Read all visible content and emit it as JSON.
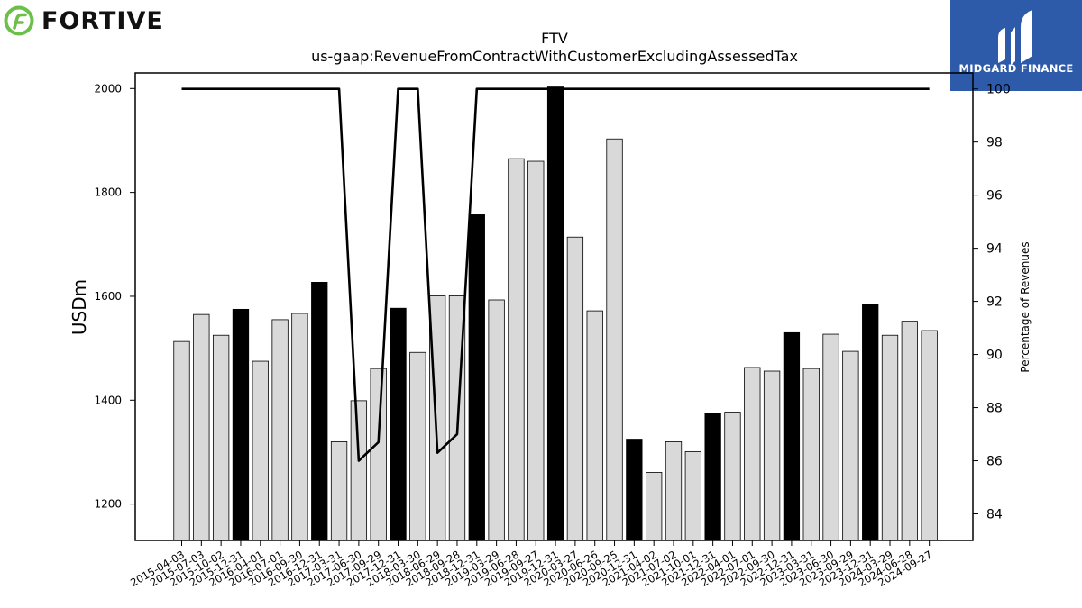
{
  "brand_left": {
    "name": "FORTIVE",
    "color": "#6cc04a"
  },
  "brand_right": {
    "name": "MIDGARD FINANCE",
    "color": "#2d5aa9"
  },
  "chart_data": {
    "type": "bar",
    "title": "FTV",
    "subtitle": "us-gaap:RevenueFromContractWithCustomerExcludingAssessedTax",
    "ylabel": "USDm",
    "y2label": "Percentage of Revenues",
    "ylim": [
      1130,
      2030
    ],
    "y2lim": [
      83,
      100.6
    ],
    "yticks": [
      1200,
      1400,
      1600,
      1800,
      2000
    ],
    "y2ticks": [
      84,
      86,
      88,
      90,
      92,
      94,
      96,
      98,
      100
    ],
    "grid": false,
    "colors": {
      "quarter": "#d9d9d9",
      "year_end": "#000000",
      "line": "#000000"
    },
    "categories": [
      "2015-04-03",
      "2015-07-03",
      "2015-10-02",
      "2015-12-31",
      "2016-04-01",
      "2016-07-01",
      "2016-09-30",
      "2016-12-31",
      "2017-03-31",
      "2017-06-30",
      "2017-09-29",
      "2017-12-31",
      "2018-03-30",
      "2018-06-29",
      "2018-09-28",
      "2018-12-31",
      "2019-03-29",
      "2019-06-28",
      "2019-09-27",
      "2019-12-31",
      "2020-03-27",
      "2020-06-26",
      "2020-09-25",
      "2020-12-31",
      "2021-04-02",
      "2021-07-02",
      "2021-10-01",
      "2021-12-31",
      "2022-04-01",
      "2022-07-01",
      "2022-09-30",
      "2022-12-31",
      "2023-03-31",
      "2023-06-30",
      "2023-09-29",
      "2023-12-31",
      "2024-03-29",
      "2024-06-28",
      "2024-09-27"
    ],
    "series": [
      {
        "values": [
          1513,
          1565,
          1525,
          1575,
          1475,
          1555,
          1567,
          1627,
          1320,
          1399,
          1461,
          1577,
          1492,
          1601,
          1601,
          1757,
          1593,
          1865,
          1860,
          2003,
          1714,
          1572,
          1903,
          1325,
          1261,
          1320,
          1301,
          1375,
          1377,
          1463,
          1456,
          1530,
          1461,
          1527,
          1494,
          1584,
          1525,
          1552,
          1534
        ],
        "year_end": [
          false,
          false,
          false,
          true,
          false,
          false,
          false,
          true,
          false,
          false,
          false,
          true,
          false,
          false,
          false,
          true,
          false,
          false,
          false,
          true,
          false,
          false,
          false,
          true,
          false,
          false,
          false,
          true,
          false,
          false,
          false,
          true,
          false,
          false,
          false,
          true,
          false,
          false,
          false
        ]
      },
      {
        "axis": "right",
        "type": "line",
        "values": [
          100,
          100,
          100,
          100,
          100,
          100,
          100,
          100,
          100,
          86.0,
          86.7,
          100,
          100,
          86.3,
          87.0,
          100,
          100,
          100,
          100,
          100,
          100,
          100,
          100,
          100,
          100,
          100,
          100,
          100,
          100,
          100,
          100,
          100,
          100,
          100,
          100,
          100,
          100,
          100,
          100
        ]
      }
    ]
  }
}
